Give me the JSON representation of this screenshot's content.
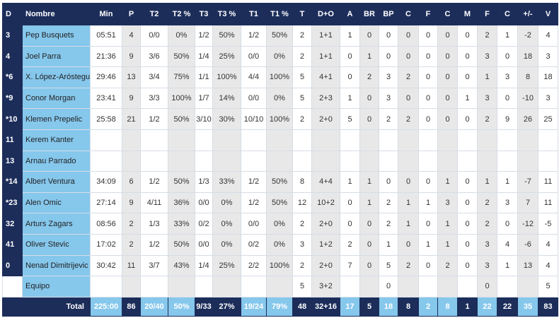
{
  "table": {
    "header": [
      "D",
      "Nombre",
      "Min",
      "P",
      "T2",
      "T2 %",
      "T3",
      "T3 %",
      "T1",
      "T1 %",
      "T",
      "D+O",
      "A",
      "BR",
      "BP",
      "C",
      "F",
      "C",
      "M",
      "F",
      "C",
      "+/-",
      "V"
    ],
    "rows": [
      [
        "3",
        "Pep Busquets",
        "05:51",
        "4",
        "0/0",
        "0%",
        "1/2",
        "50%",
        "1/2",
        "50%",
        "2",
        "1+1",
        "1",
        "0",
        "0",
        "0",
        "0",
        "0",
        "0",
        "2",
        "1",
        "-2",
        "4"
      ],
      [
        "4",
        "Joel Parra",
        "21:36",
        "9",
        "3/6",
        "50%",
        "1/4",
        "25%",
        "0/0",
        "0%",
        "2",
        "1+1",
        "0",
        "1",
        "0",
        "0",
        "0",
        "0",
        "0",
        "3",
        "0",
        "18",
        "3"
      ],
      [
        "*6",
        "X. López-Aróstegui",
        "29:46",
        "13",
        "3/4",
        "75%",
        "1/1",
        "100%",
        "4/4",
        "100%",
        "5",
        "4+1",
        "0",
        "2",
        "3",
        "2",
        "0",
        "0",
        "0",
        "1",
        "3",
        "8",
        "18"
      ],
      [
        "*9",
        "Conor Morgan",
        "23:41",
        "9",
        "3/3",
        "100%",
        "1/7",
        "14%",
        "0/0",
        "0%",
        "5",
        "2+3",
        "1",
        "0",
        "3",
        "0",
        "0",
        "0",
        "1",
        "3",
        "0",
        "-10",
        "3"
      ],
      [
        "*10",
        "Klemen Prepelic",
        "25:58",
        "21",
        "1/2",
        "50%",
        "3/10",
        "30%",
        "10/10",
        "100%",
        "2",
        "2+0",
        "5",
        "0",
        "2",
        "2",
        "0",
        "0",
        "0",
        "2",
        "9",
        "26",
        "25"
      ],
      [
        "11",
        "Kerem Kanter",
        null,
        null,
        null,
        null,
        null,
        null,
        null,
        null,
        null,
        null,
        null,
        null,
        null,
        null,
        null,
        null,
        null,
        null,
        null,
        null,
        null
      ],
      [
        "13",
        "Arnau Parrado",
        null,
        null,
        null,
        null,
        null,
        null,
        null,
        null,
        null,
        null,
        null,
        null,
        null,
        null,
        null,
        null,
        null,
        null,
        null,
        null,
        null
      ],
      [
        "*14",
        "Albert Ventura",
        "34:09",
        "6",
        "1/2",
        "50%",
        "1/3",
        "33%",
        "1/2",
        "50%",
        "8",
        "4+4",
        "1",
        "1",
        "0",
        "0",
        "0",
        "1",
        "0",
        "1",
        "1",
        "-7",
        "11"
      ],
      [
        "*23",
        "Alen Omic",
        "27:14",
        "9",
        "4/11",
        "36%",
        "0/0",
        "0%",
        "1/2",
        "50%",
        "12",
        "10+2",
        "0",
        "1",
        "2",
        "1",
        "1",
        "3",
        "0",
        "2",
        "3",
        "7",
        "11"
      ],
      [
        "32",
        "Arturs Zagars",
        "08:56",
        "2",
        "1/3",
        "33%",
        "0/2",
        "0%",
        "0/0",
        "0%",
        "2",
        "2+0",
        "0",
        "0",
        "2",
        "1",
        "0",
        "1",
        "0",
        "2",
        "0",
        "-12",
        "-5"
      ],
      [
        "41",
        "Oliver Stevic",
        "17:02",
        "2",
        "1/2",
        "50%",
        "0/0",
        "0%",
        "0/2",
        "0%",
        "3",
        "1+2",
        "2",
        "0",
        "1",
        "0",
        "1",
        "1",
        "0",
        "3",
        "4",
        "-6",
        "4"
      ],
      [
        "0",
        "Nenad Dimitrijevic",
        "30:42",
        "11",
        "3/7",
        "43%",
        "1/4",
        "25%",
        "2/2",
        "100%",
        "2",
        "2+0",
        "7",
        "0",
        "5",
        "2",
        "0",
        "2",
        "0",
        "3",
        "1",
        "13",
        "4"
      ],
      [
        null,
        "Equipo",
        null,
        null,
        null,
        null,
        null,
        null,
        null,
        null,
        "5",
        "3+2",
        null,
        null,
        "0",
        null,
        null,
        null,
        null,
        "0",
        null,
        null,
        "5"
      ]
    ],
    "total": {
      "label": "Total",
      "values": [
        "225:00",
        "86",
        "20/40",
        "50%",
        "9/33",
        "27%",
        "19/24",
        "79%",
        "48",
        "32+16",
        "17",
        "5",
        "18",
        "8",
        "2",
        "8",
        "1",
        "22",
        "22",
        "35",
        "83"
      ]
    }
  }
}
